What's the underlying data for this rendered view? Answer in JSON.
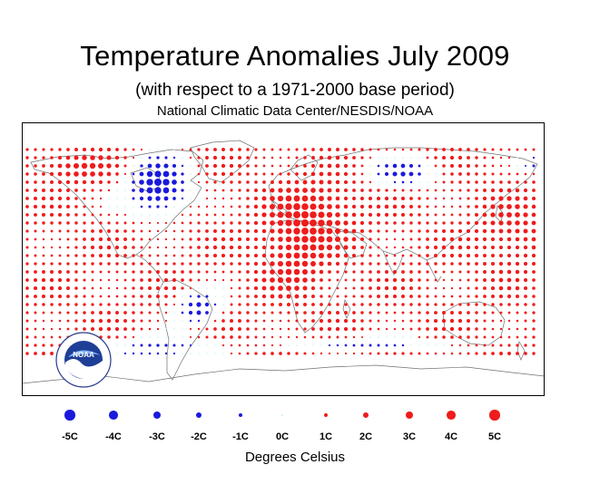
{
  "header": {
    "title": "Temperature Anomalies July 2009",
    "subtitle": "(with respect to a 1971-2000 base period)",
    "source": "National Climatic Data Center/NESDIS/NOAA"
  },
  "map": {
    "projection": "equirectangular",
    "marker": "filled-circle",
    "warm_color": "#ee1c1c",
    "cool_color": "#1a1adc",
    "neutral_color": "#c8f0f0",
    "coastline_color": "#606060",
    "frame_color": "#000000"
  },
  "logo": {
    "text": "NOAA",
    "ring_text": "NATIONAL OCEANIC AND ATMOSPHERIC ADMINISTRATION · U.S. DEPARTMENT OF COMMERCE",
    "icon": "noaa-seal-icon"
  },
  "legend": {
    "units_label": "Degrees Celsius",
    "items": [
      {
        "label": "-5C",
        "value": -5,
        "color": "#1a1adc"
      },
      {
        "label": "-4C",
        "value": -4,
        "color": "#1a1adc"
      },
      {
        "label": "-3C",
        "value": -3,
        "color": "#1a1adc"
      },
      {
        "label": "-2C",
        "value": -2,
        "color": "#1a1adc"
      },
      {
        "label": "-1C",
        "value": -1,
        "color": "#1a1adc"
      },
      {
        "label": "0C",
        "value": 0,
        "color": "#c8f0f0"
      },
      {
        "label": "1C",
        "value": 1,
        "color": "#ee1c1c"
      },
      {
        "label": "2C",
        "value": 2,
        "color": "#ee1c1c"
      },
      {
        "label": "3C",
        "value": 3,
        "color": "#ee1c1c"
      },
      {
        "label": "4C",
        "value": 4,
        "color": "#ee1c1c"
      },
      {
        "label": "5C",
        "value": 5,
        "color": "#ee1c1c"
      }
    ]
  }
}
